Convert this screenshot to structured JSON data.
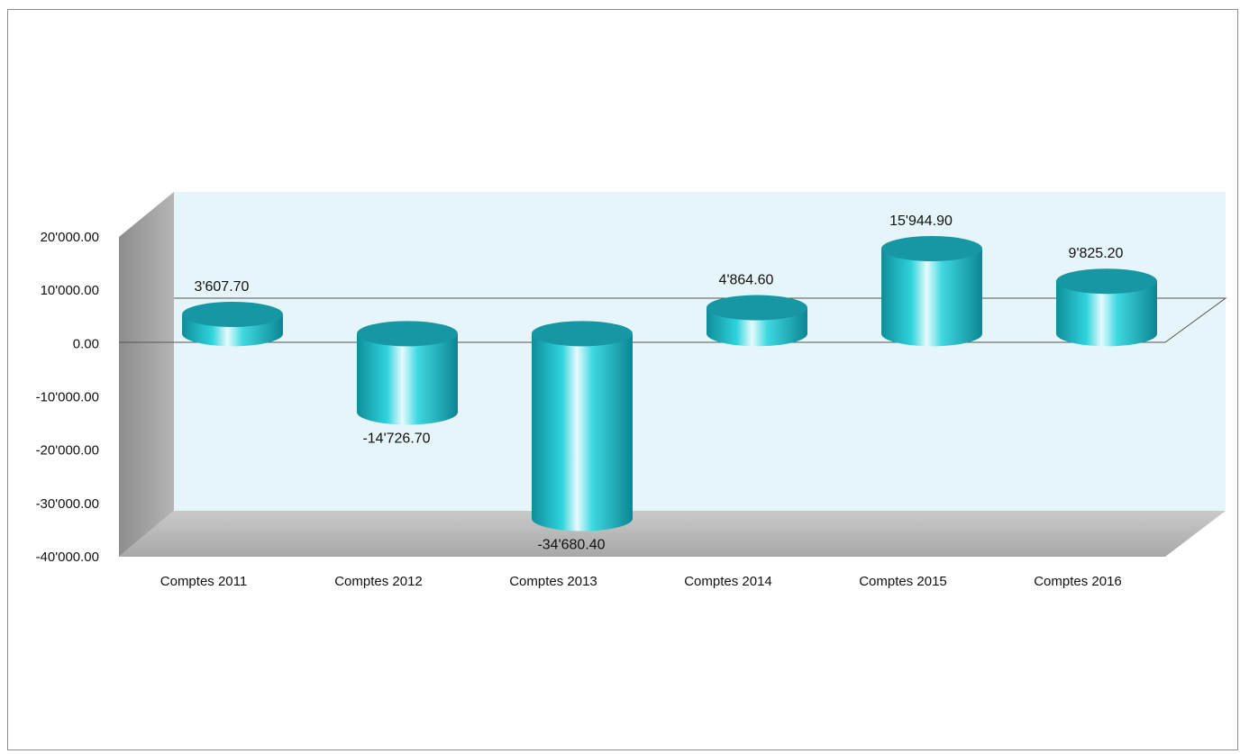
{
  "chart_data": {
    "type": "bar",
    "style": "3d-cylinder",
    "categories": [
      "Comptes 2011",
      "Comptes 2012",
      "Comptes 2013",
      "Comptes 2014",
      "Comptes 2015",
      "Comptes 2016"
    ],
    "values": [
      3607.7,
      -14726.7,
      -34680.4,
      4864.6,
      15944.9,
      9825.2
    ],
    "data_labels": [
      "3'607.70",
      "-14'726.70",
      "-34'680.40",
      "4'864.60",
      "15'944.90",
      "9'825.20"
    ],
    "y_ticks": [
      20000,
      10000,
      0,
      -10000,
      -20000,
      -30000,
      -40000
    ],
    "y_tick_labels": [
      "20'000.00",
      "10'000.00",
      "0.00",
      "-10'000.00",
      "-20'000.00",
      "-30'000.00",
      "-40'000.00"
    ],
    "ylim": [
      -40000,
      20000
    ],
    "grid": false,
    "legend": "none",
    "colors": {
      "bar": "#1fbcc8",
      "bar_top": "#1796a3",
      "back_wall": "#e3f4f8",
      "side_wall": "#9a9a9a",
      "floor": "#b4b4b4"
    }
  }
}
